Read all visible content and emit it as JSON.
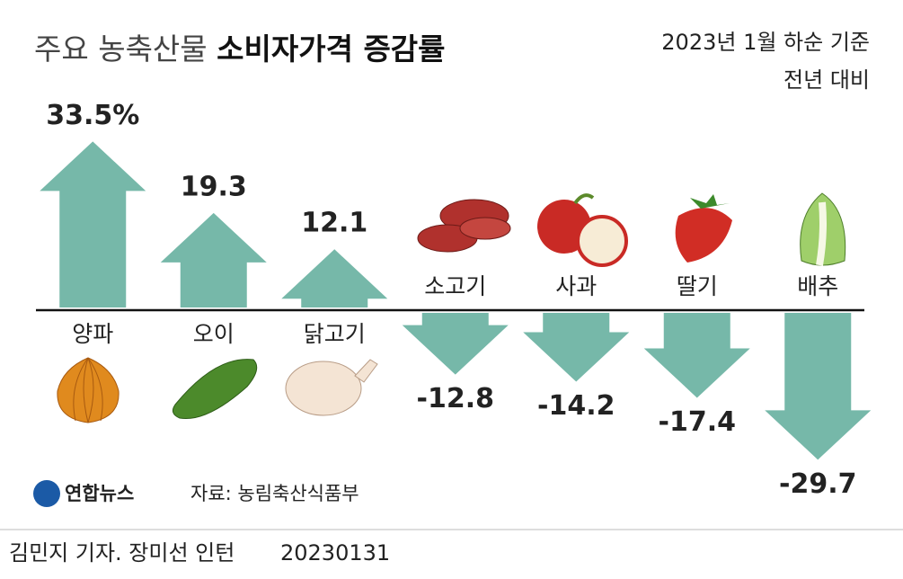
{
  "chart_data": {
    "type": "arrow",
    "title": [
      "주요 농축산물",
      "소비자가격 증감률"
    ],
    "subtitle": [
      "2023년 1월 하순 기준",
      "전년 대비"
    ],
    "categories": [
      "양파",
      "오이",
      "닭고기",
      "소고기",
      "사과",
      "딸기",
      "배추"
    ],
    "values": [
      33.5,
      19.3,
      12.1,
      -12.8,
      -14.2,
      -17.4,
      -29.7
    ],
    "value_labels": [
      "33.5%",
      "19.3",
      "12.1",
      "-12.8",
      "-14.2",
      "-17.4",
      "-29.7"
    ],
    "color": "#76b8a9",
    "source": "자료: 농림축산식품부",
    "logo": "연합뉴스",
    "credit": "김민지 기자. 장미선 인턴",
    "date": "20230131"
  }
}
